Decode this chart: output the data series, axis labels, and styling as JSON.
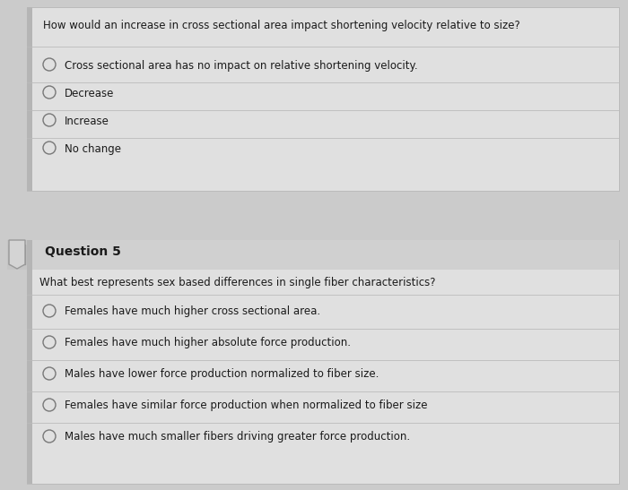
{
  "bg_color": "#cbcbcb",
  "box_color": "#e0e0e0",
  "q5_header_color": "#d0d0d0",
  "text_color": "#1a1a1a",
  "divider_color": "#b8b8b8",
  "question1_text": "How would an increase in cross sectional area impact shortening velocity relative to size?",
  "q1_options": [
    "Cross sectional area has no impact on relative shortening velocity.",
    "Decrease",
    "Increase",
    "No change"
  ],
  "q5_label": "Question 5",
  "question5_text": "What best represents sex based differences in single fiber characteristics?",
  "q5_options": [
    "Females have much higher cross sectional area.",
    "Females have much higher absolute force production.",
    "Males have lower force production normalized to fiber size.",
    "Females have similar force production when normalized to fiber size",
    "Males have much smaller fibers driving greater force production."
  ],
  "figsize": [
    7.0,
    5.47
  ],
  "dpi": 100
}
